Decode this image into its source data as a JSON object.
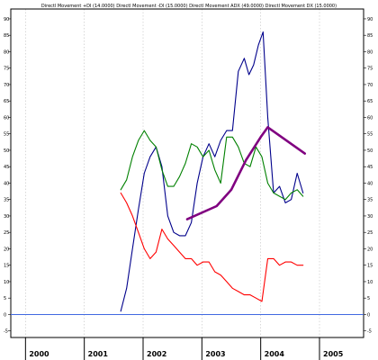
{
  "chart_data": {
    "type": "line",
    "title": "Directl Movement +DI (14.0000) Directl Movement -DI (15.0000) Directl Movement ADX (49.0000) Directl Movement DX (15.0000)",
    "xlabel": "",
    "ylabel": "",
    "xlim": [
      1999.75,
      2005.75
    ],
    "ylim": [
      -7,
      93
    ],
    "yticks": [
      -5,
      0,
      5,
      10,
      15,
      20,
      25,
      30,
      35,
      40,
      45,
      50,
      55,
      60,
      65,
      70,
      75,
      80,
      85,
      90
    ],
    "xticks": [
      {
        "value": 2000,
        "label": "2000"
      },
      {
        "value": 2001,
        "label": "2001"
      },
      {
        "value": 2002,
        "label": "2002"
      },
      {
        "value": 2003,
        "label": "2003"
      },
      {
        "value": 2004,
        "label": "2004"
      },
      {
        "value": 2005,
        "label": "2005"
      }
    ],
    "grid": true,
    "series": [
      {
        "color": "#00008b",
        "points": [
          [
            2001.62,
            1
          ],
          [
            2001.72,
            8
          ],
          [
            2001.82,
            20
          ],
          [
            2001.92,
            32
          ],
          [
            2002.02,
            43
          ],
          [
            2002.12,
            48
          ],
          [
            2002.22,
            51
          ],
          [
            2002.32,
            45
          ],
          [
            2002.42,
            30
          ],
          [
            2002.52,
            25
          ],
          [
            2002.62,
            24
          ],
          [
            2002.72,
            24
          ],
          [
            2002.82,
            28
          ],
          [
            2002.92,
            40
          ],
          [
            2003.02,
            48
          ],
          [
            2003.12,
            52
          ],
          [
            2003.22,
            48
          ],
          [
            2003.32,
            53
          ],
          [
            2003.42,
            56
          ],
          [
            2003.52,
            56
          ],
          [
            2003.62,
            74
          ],
          [
            2003.72,
            78
          ],
          [
            2003.8,
            73
          ],
          [
            2003.88,
            76
          ],
          [
            2003.96,
            82
          ],
          [
            2004.04,
            86
          ],
          [
            2004.12,
            60
          ],
          [
            2004.22,
            37
          ],
          [
            2004.32,
            39
          ],
          [
            2004.42,
            34
          ],
          [
            2004.52,
            35
          ],
          [
            2004.62,
            43
          ],
          [
            2004.72,
            37
          ]
        ]
      },
      {
        "color": "#008000",
        "points": [
          [
            2001.62,
            38
          ],
          [
            2001.72,
            41
          ],
          [
            2001.82,
            48
          ],
          [
            2001.92,
            53
          ],
          [
            2002.02,
            56
          ],
          [
            2002.12,
            53
          ],
          [
            2002.22,
            51
          ],
          [
            2002.32,
            44
          ],
          [
            2002.42,
            39
          ],
          [
            2002.52,
            39
          ],
          [
            2002.62,
            42
          ],
          [
            2002.72,
            46
          ],
          [
            2002.82,
            52
          ],
          [
            2002.92,
            51
          ],
          [
            2003.02,
            48
          ],
          [
            2003.12,
            50
          ],
          [
            2003.22,
            44
          ],
          [
            2003.32,
            40
          ],
          [
            2003.42,
            54
          ],
          [
            2003.52,
            54
          ],
          [
            2003.62,
            51
          ],
          [
            2003.72,
            46
          ],
          [
            2003.82,
            45
          ],
          [
            2003.92,
            51
          ],
          [
            2004.02,
            48
          ],
          [
            2004.12,
            40
          ],
          [
            2004.22,
            37
          ],
          [
            2004.32,
            36
          ],
          [
            2004.42,
            35
          ],
          [
            2004.52,
            37
          ],
          [
            2004.62,
            38
          ],
          [
            2004.72,
            36
          ]
        ]
      },
      {
        "color": "#ff0000",
        "points": [
          [
            2001.62,
            37
          ],
          [
            2001.72,
            34
          ],
          [
            2001.82,
            30
          ],
          [
            2001.92,
            25
          ],
          [
            2002.02,
            20
          ],
          [
            2002.12,
            17
          ],
          [
            2002.22,
            19
          ],
          [
            2002.32,
            26
          ],
          [
            2002.42,
            23
          ],
          [
            2002.52,
            21
          ],
          [
            2002.62,
            19
          ],
          [
            2002.72,
            17
          ],
          [
            2002.82,
            17
          ],
          [
            2002.92,
            15
          ],
          [
            2003.02,
            16
          ],
          [
            2003.12,
            16
          ],
          [
            2003.22,
            13
          ],
          [
            2003.32,
            12
          ],
          [
            2003.42,
            10
          ],
          [
            2003.52,
            8
          ],
          [
            2003.62,
            7
          ],
          [
            2003.72,
            6
          ],
          [
            2003.82,
            6
          ],
          [
            2003.92,
            5
          ],
          [
            2004.02,
            4
          ],
          [
            2004.12,
            17
          ],
          [
            2004.22,
            17
          ],
          [
            2004.32,
            15
          ],
          [
            2004.42,
            16
          ],
          [
            2004.52,
            16
          ],
          [
            2004.62,
            15
          ],
          [
            2004.72,
            15
          ]
        ]
      },
      {
        "color": "#800080",
        "width": 2.6,
        "points": [
          [
            2002.75,
            29
          ],
          [
            2003.25,
            33
          ],
          [
            2003.5,
            38
          ],
          [
            2003.75,
            47
          ],
          [
            2004.0,
            54
          ],
          [
            2004.12,
            57
          ],
          [
            2004.75,
            49
          ]
        ]
      }
    ],
    "reference_line": {
      "y": 0,
      "color": "#4169e1"
    }
  }
}
